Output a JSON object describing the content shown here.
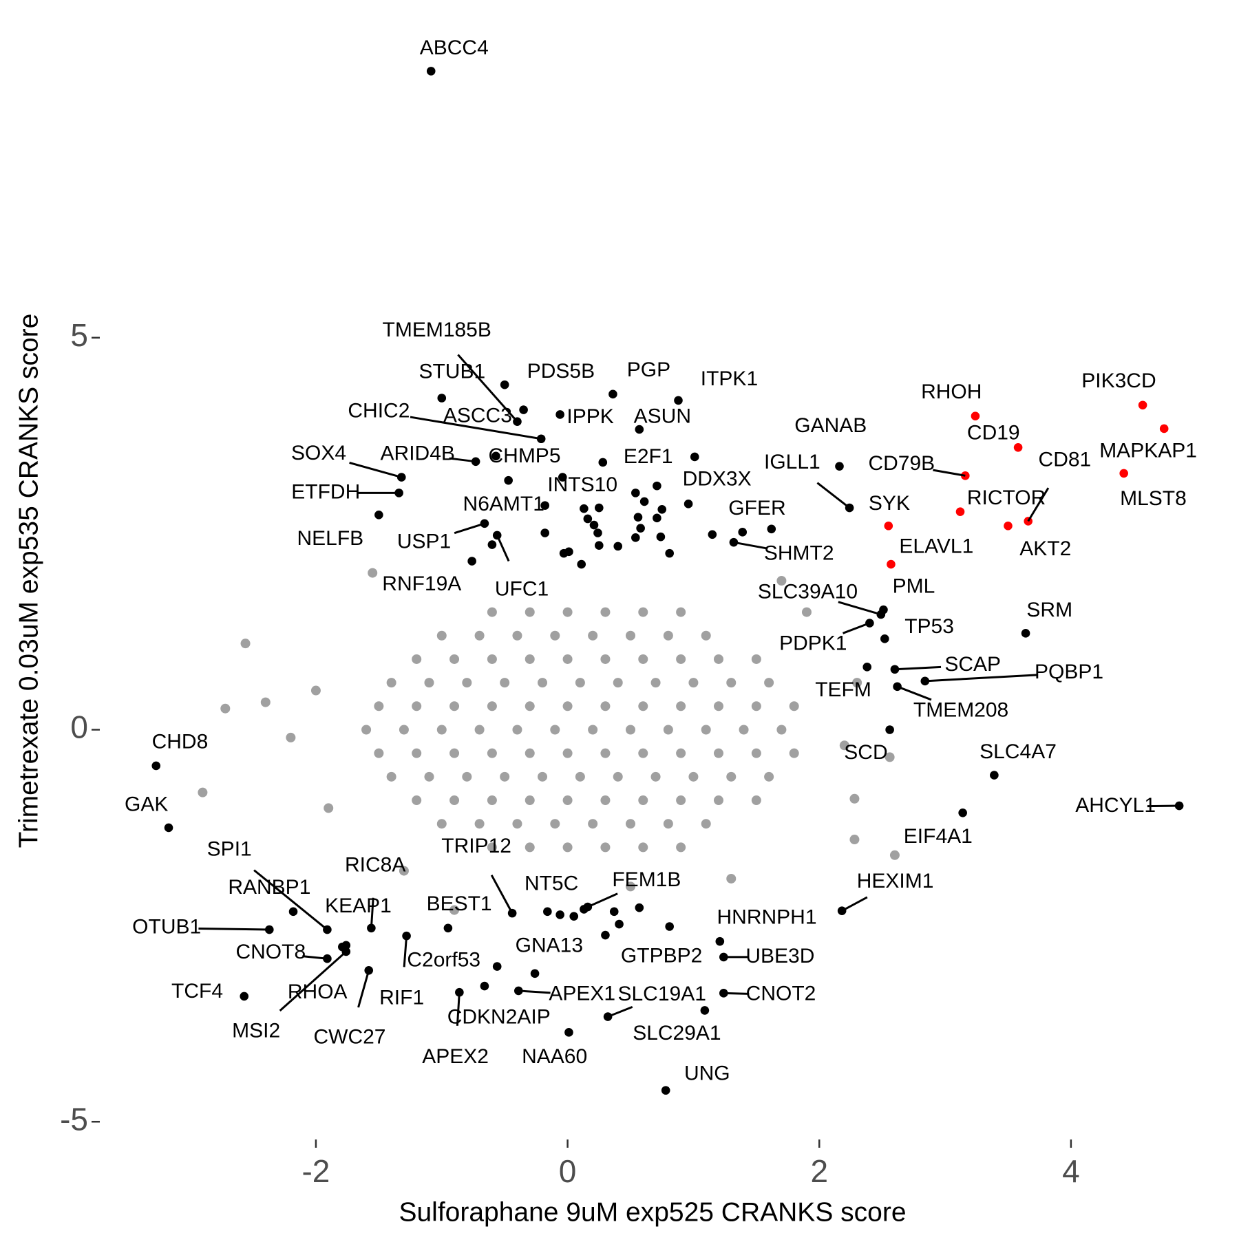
{
  "chart_data": {
    "type": "scatter",
    "x_label": "Sulforaphane 9uM exp525 CRANKS score",
    "y_label": "Trimetrexate 0.03uM exp535 CRANKS score",
    "xlim": [
      -3.75,
      5.1
    ],
    "ylim": [
      -5.2,
      9.0
    ],
    "xticks": [
      -2,
      0,
      2,
      4
    ],
    "yticks": [
      -5,
      0,
      5
    ],
    "grid": false,
    "series": [
      {
        "color": "#a0a0a0",
        "x": [
          -0.6,
          -0.3,
          0,
          0.3,
          0.6,
          0.9,
          -1.0,
          -0.7,
          -0.4,
          -0.1,
          0.2,
          0.5,
          0.8,
          1.1,
          -1.2,
          -0.9,
          -0.6,
          -0.3,
          0,
          0.3,
          0.6,
          0.9,
          1.2,
          1.5,
          -1.4,
          -1.1,
          -0.8,
          -0.5,
          -0.2,
          0.1,
          0.4,
          0.7,
          1.0,
          1.3,
          1.6,
          -1.5,
          -1.2,
          -0.9,
          -0.6,
          -0.3,
          0,
          0.3,
          0.6,
          0.9,
          1.2,
          1.5,
          1.8,
          -1.6,
          -1.3,
          -1.0,
          -0.7,
          -0.4,
          -0.1,
          0.2,
          0.5,
          0.8,
          1.1,
          1.4,
          1.7,
          -1.5,
          -1.2,
          -0.9,
          -0.6,
          -0.3,
          0,
          0.3,
          0.6,
          0.9,
          1.2,
          1.5,
          1.8,
          -1.4,
          -1.1,
          -0.8,
          -0.5,
          -0.2,
          0.1,
          0.4,
          0.7,
          1.0,
          1.3,
          1.6,
          -1.2,
          -0.9,
          -0.6,
          -0.3,
          0,
          0.3,
          0.6,
          0.9,
          1.2,
          1.5,
          -1.0,
          -0.7,
          -0.4,
          -0.1,
          0.2,
          0.5,
          0.8,
          1.1,
          -0.6,
          -0.3,
          0,
          0.3,
          0.6,
          0.9,
          -2.56,
          -2.72,
          -2.4,
          -2.9,
          -2.2,
          -2.0,
          -1.9,
          2.3,
          2.2,
          2.56,
          2.28,
          2.28,
          2.6,
          -1.55,
          1.9,
          1.7,
          -0.9,
          0.5,
          -1.3,
          1.3
        ],
        "y": [
          1.5,
          1.5,
          1.5,
          1.5,
          1.5,
          1.5,
          1.2,
          1.2,
          1.2,
          1.2,
          1.2,
          1.2,
          1.2,
          1.2,
          0.9,
          0.9,
          0.9,
          0.9,
          0.9,
          0.9,
          0.9,
          0.9,
          0.9,
          0.9,
          0.6,
          0.6,
          0.6,
          0.6,
          0.6,
          0.6,
          0.6,
          0.6,
          0.6,
          0.6,
          0.6,
          0.3,
          0.3,
          0.3,
          0.3,
          0.3,
          0.3,
          0.3,
          0.3,
          0.3,
          0.3,
          0.3,
          0.3,
          0,
          0,
          0,
          0,
          0,
          0,
          0,
          0,
          0,
          0,
          0,
          0,
          -0.3,
          -0.3,
          -0.3,
          -0.3,
          -0.3,
          -0.3,
          -0.3,
          -0.3,
          -0.3,
          -0.3,
          -0.3,
          -0.3,
          -0.6,
          -0.6,
          -0.6,
          -0.6,
          -0.6,
          -0.6,
          -0.6,
          -0.6,
          -0.6,
          -0.6,
          -0.6,
          -0.9,
          -0.9,
          -0.9,
          -0.9,
          -0.9,
          -0.9,
          -0.9,
          -0.9,
          -0.9,
          -0.9,
          -1.2,
          -1.2,
          -1.2,
          -1.2,
          -1.2,
          -1.2,
          -1.2,
          -1.2,
          -1.5,
          -1.5,
          -1.5,
          -1.5,
          -1.5,
          -1.5,
          1.1,
          0.27,
          0.35,
          -0.8,
          -0.1,
          0.5,
          -1.0,
          0.6,
          -0.2,
          -0.35,
          -0.88,
          -1.4,
          -1.6,
          2.0,
          1.5,
          1.9,
          -2.3,
          -2.0,
          -1.8,
          -1.9
        ]
      },
      {
        "color": "#000000",
        "x": [
          0.54,
          0.71,
          0.61,
          0.75,
          0.13,
          0.25,
          0.16,
          0.21,
          0.24,
          0.56,
          0.58,
          0.71,
          0.74,
          0.81,
          0.4,
          0.54,
          -0.03,
          0.01,
          0.11,
          0.25,
          1.15,
          1.39,
          -0.6,
          0.96,
          -0.18,
          -0.18,
          -0.06,
          0.05,
          0.13,
          0.3,
          0.37,
          0.57,
          0.41
        ],
        "y": [
          3.02,
          3.11,
          2.91,
          2.81,
          2.82,
          2.83,
          2.69,
          2.61,
          2.51,
          2.71,
          2.57,
          2.7,
          2.46,
          2.25,
          2.34,
          2.45,
          2.25,
          2.27,
          2.11,
          2.35,
          2.49,
          2.52,
          2.36,
          2.88,
          2.86,
          2.51,
          -2.36,
          -2.38,
          -2.29,
          -2.62,
          -2.32,
          -2.27,
          -2.48
        ]
      },
      {
        "color": "#000000",
        "labels": [
          "ABCC4",
          "TMEM185B",
          "STUB1",
          "PDS5B",
          "ASCC3",
          "PGP",
          "ITPK1",
          "IPPK",
          "ASUN",
          "CHIC2",
          "E2F1",
          "SOX4",
          "ARID4B",
          "ETFDH",
          "NELFB",
          "CHMP5",
          "N6AMT1",
          "INTS10",
          "DDX3X",
          "GANAB",
          "IGLL1",
          "USP1",
          "RNF19A",
          "UFC1",
          "GFER",
          "SHMT2",
          "SLC39A10",
          "PML",
          "PDPK1",
          "TP53",
          "TEFM",
          "SCAP",
          "PQBP1",
          "TMEM208",
          "SCD",
          "SRM",
          "SLC4A7",
          "AHCYL1",
          "EIF4A1",
          "HEXIM1",
          "CHD8",
          "GAK",
          "SPI1",
          "RANBP1",
          "RIC8A",
          "KEAP1",
          "OTUB1",
          "CNOT8",
          "MSI2",
          "TCF4",
          "RHOA",
          "CWC27",
          "RIF1",
          "TRIP12",
          "BEST1",
          "NT5C",
          "FEM1B",
          "C2orf53",
          "GNA13",
          "APEX1",
          "CDKN2AIP",
          "APEX2",
          "NAA60",
          "SLC19A1",
          "GTPBP2",
          "HNRNPH1",
          "UBE3D",
          "CNOT2",
          "SLC29A1",
          "UNG"
        ],
        "x": [
          -1.085,
          -0.4,
          -1.0,
          -0.35,
          -0.5,
          0.36,
          0.88,
          -0.06,
          0.57,
          -0.21,
          0.28,
          -1.32,
          -0.73,
          -1.34,
          -1.5,
          -0.57,
          -0.47,
          -0.04,
          1.01,
          2.16,
          2.24,
          -0.66,
          -0.76,
          -0.56,
          1.62,
          1.32,
          2.49,
          2.51,
          2.4,
          2.52,
          2.38,
          2.6,
          2.84,
          2.62,
          2.56,
          3.64,
          3.39,
          4.86,
          3.14,
          2.18,
          -3.27,
          -3.17,
          -1.91,
          -2.18,
          -1.56,
          -1.79,
          -2.37,
          -1.91,
          -1.76,
          -2.57,
          -1.76,
          -1.58,
          -1.28,
          -0.44,
          -0.95,
          -0.16,
          0.16,
          -0.56,
          -0.26,
          -0.39,
          -0.66,
          -0.86,
          0.01,
          0.32,
          0.81,
          1.21,
          1.24,
          1.24,
          1.09,
          0.78
        ],
        "y": [
          8.4,
          3.93,
          4.23,
          4.08,
          4.4,
          4.28,
          4.2,
          4.02,
          3.83,
          3.71,
          3.41,
          3.22,
          3.42,
          3.02,
          2.74,
          3.49,
          3.18,
          3.22,
          3.48,
          3.36,
          2.83,
          2.63,
          2.15,
          2.48,
          2.56,
          2.39,
          1.47,
          1.53,
          1.36,
          1.16,
          0.8,
          0.77,
          0.62,
          0.55,
          0.0,
          1.23,
          -0.58,
          -0.97,
          -1.06,
          -2.31,
          -0.46,
          -1.25,
          -2.55,
          -2.32,
          -2.53,
          -2.77,
          -2.55,
          -2.92,
          -2.83,
          -3.4,
          -2.75,
          -3.07,
          -2.63,
          -2.34,
          -2.53,
          -2.32,
          -2.26,
          -3.02,
          -3.11,
          -3.33,
          -3.27,
          -3.35,
          -3.86,
          -3.66,
          -2.51,
          -2.7,
          -2.9,
          -3.36,
          -3.58,
          -4.6
        ]
      },
      {
        "color": "#ff0000",
        "labels": [
          "PIK3CD",
          "MAPKAP1",
          "MLST8",
          "RHOH",
          "CD19",
          "CD81",
          "CD79B",
          "RICTOR",
          "AKT2",
          "SYK",
          "ELAVL1"
        ],
        "x": [
          4.57,
          4.74,
          4.42,
          3.24,
          3.58,
          3.66,
          3.16,
          3.12,
          3.5,
          2.55,
          2.57
        ],
        "y": [
          4.14,
          3.84,
          3.27,
          4.0,
          3.6,
          2.66,
          3.24,
          2.78,
          2.6,
          2.6,
          2.11
        ]
      }
    ]
  }
}
